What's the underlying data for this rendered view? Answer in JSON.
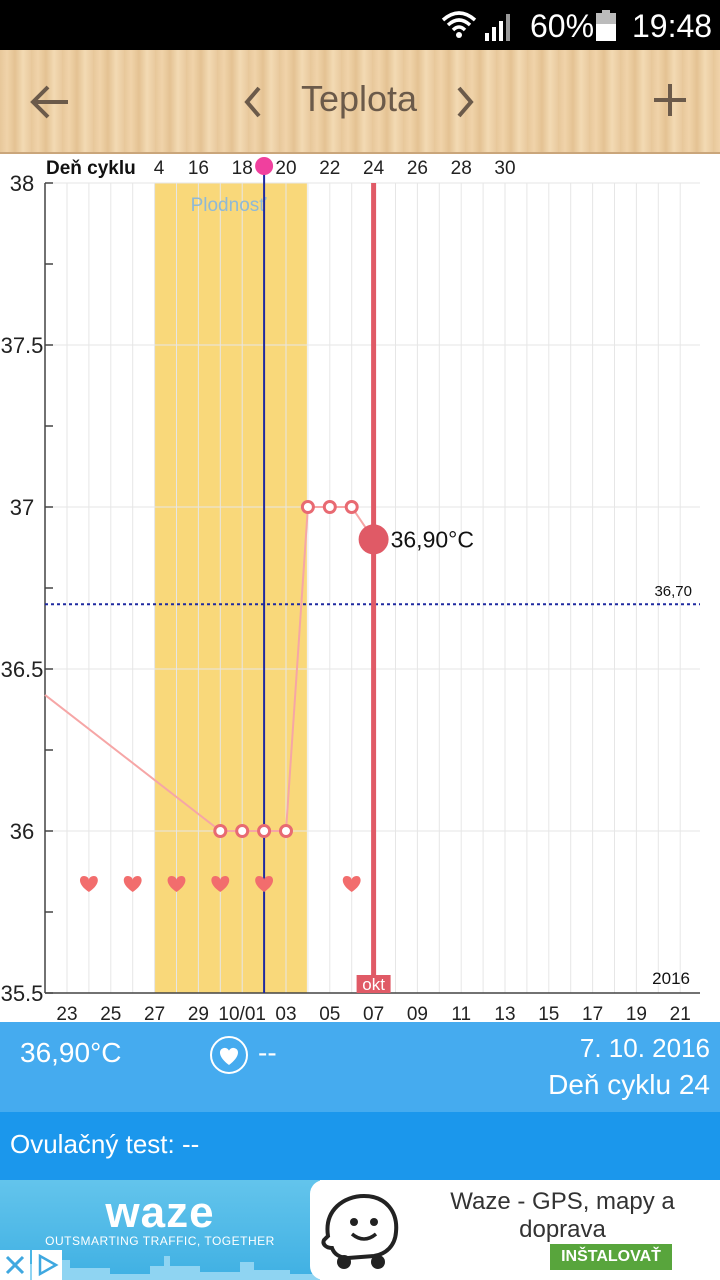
{
  "status_bar": {
    "battery_percent": "60%",
    "time": "19:48"
  },
  "toolbar": {
    "title": "Teplota"
  },
  "chart_data": {
    "type": "line",
    "cycle_label": "Deň cyklu",
    "cycle_ticks": [
      "4",
      "16",
      "18",
      "20",
      "22",
      "24",
      "26",
      "28",
      "30"
    ],
    "x_ticks": [
      "23",
      "25",
      "27",
      "29",
      "10/01",
      "03",
      "05",
      "07",
      "09",
      "11",
      "13",
      "15",
      "17",
      "19",
      "21"
    ],
    "y_ticks": [
      "38",
      "37.5",
      "37",
      "36.5",
      "36",
      "35.5"
    ],
    "ylim": [
      35.5,
      38
    ],
    "fertile_label": "Plodnosť",
    "fertile_range": [
      "27",
      "04"
    ],
    "series": [
      {
        "x": [
          "22",
          "30",
          "10/01",
          "02",
          "03",
          "04",
          "05",
          "06",
          "07"
        ],
        "y": [
          36.42,
          36.0,
          36.0,
          36.0,
          36.0,
          37.0,
          37.0,
          37.0,
          36.9
        ]
      }
    ],
    "selected": {
      "x": "07",
      "value_label": "36,90°C",
      "month_label": "okt"
    },
    "ovulation_x": "02",
    "cover_line": {
      "value": 36.7,
      "label": "36,70"
    },
    "heart_days": [
      "24",
      "26",
      "28",
      "30",
      "02",
      "06"
    ],
    "year_label": "2016",
    "grid": true
  },
  "info": {
    "temperature": "36,90°C",
    "sex_value": "--",
    "date": "7. 10. 2016",
    "cycle_day": "Deň cyklu 24"
  },
  "ovulation_test": {
    "label": "Ovulačný test: --"
  },
  "ad": {
    "brand": "waze",
    "tagline": "OUTSMARTING TRAFFIC, TOGETHER",
    "app_name": "Waze - GPS, mapy a doprava",
    "install_label": "INŠTALOVAŤ"
  },
  "colors": {
    "fertile": "#f9d87a",
    "selected_line": "#e05a66",
    "ovulation_line": "#1f2aa0",
    "cover_line": "#1f2aa0",
    "temp_line": "#f6a6a6",
    "heart": "#f26d6d",
    "info_bar": "#45abef",
    "ovu_bar": "#1b97ec"
  }
}
